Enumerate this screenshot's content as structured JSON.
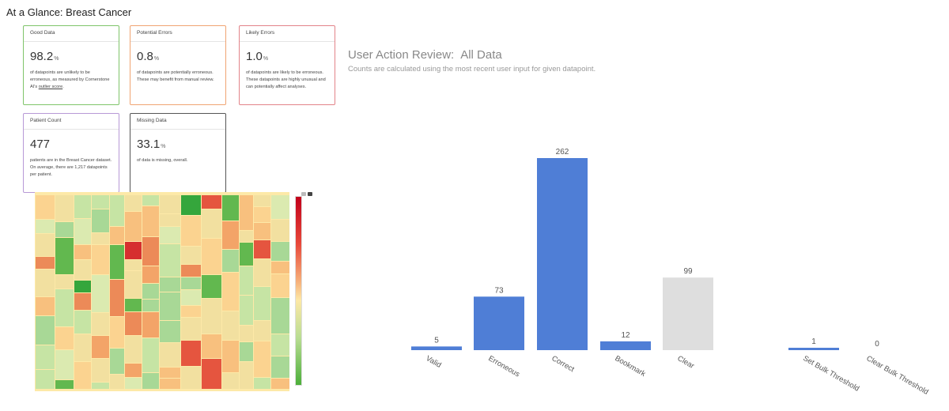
{
  "page_title": "At a Glance: Breast Cancer",
  "cards": [
    {
      "header": "Good Data",
      "value": "98.2",
      "unit": "%",
      "desc": "of datapoints are unlikely to be erroneous, as measured by Cornerstone AI's",
      "link": "outlier score",
      "desc_end": "."
    },
    {
      "header": "Potential Errors",
      "value": "0.8",
      "unit": "%",
      "desc": "of datapoints are potentially erroneous. These may benefit from manual review."
    },
    {
      "header": "Likely Errors",
      "value": "1.0",
      "unit": "%",
      "desc": "of datapoints are likely to be erroneous. These datapoints are highly unusual and can potentially affect analyses."
    },
    {
      "header": "Patient Count",
      "value": "477",
      "unit": "",
      "desc": "patients are in the Breast Cancer dataset. On average, there are 1,217 datapoints per patient."
    },
    {
      "header": "Missing Data",
      "value": "33.1",
      "unit": "%",
      "desc": "of data is missing, overall."
    }
  ],
  "review": {
    "title": "User Action Review:",
    "scope": "All Data",
    "subtitle": "Counts are calculated using the most recent user input for given datapoint."
  },
  "colors": {
    "bar_blue": "#4f7ed6",
    "bar_gray": "#dedede",
    "good_border": "#7fc46a",
    "potential_border": "#f0a472",
    "likely_border": "#e28389",
    "patient_border": "#b799d6",
    "missing_border": "#555555"
  },
  "chart_data": {
    "type": "bar",
    "categories": [
      "Valid",
      "Erroneous",
      "Correct",
      "Bookmark",
      "Clear",
      "Set Bulk Threshold",
      "Clear Bulk Threshold"
    ],
    "values": [
      5,
      73,
      262,
      12,
      99,
      1,
      0
    ],
    "bar_colors": [
      "blue",
      "blue",
      "blue",
      "blue",
      "gray",
      "blue",
      "blue"
    ],
    "ylim": [
      0,
      262
    ],
    "grid": false,
    "legend": "none"
  }
}
